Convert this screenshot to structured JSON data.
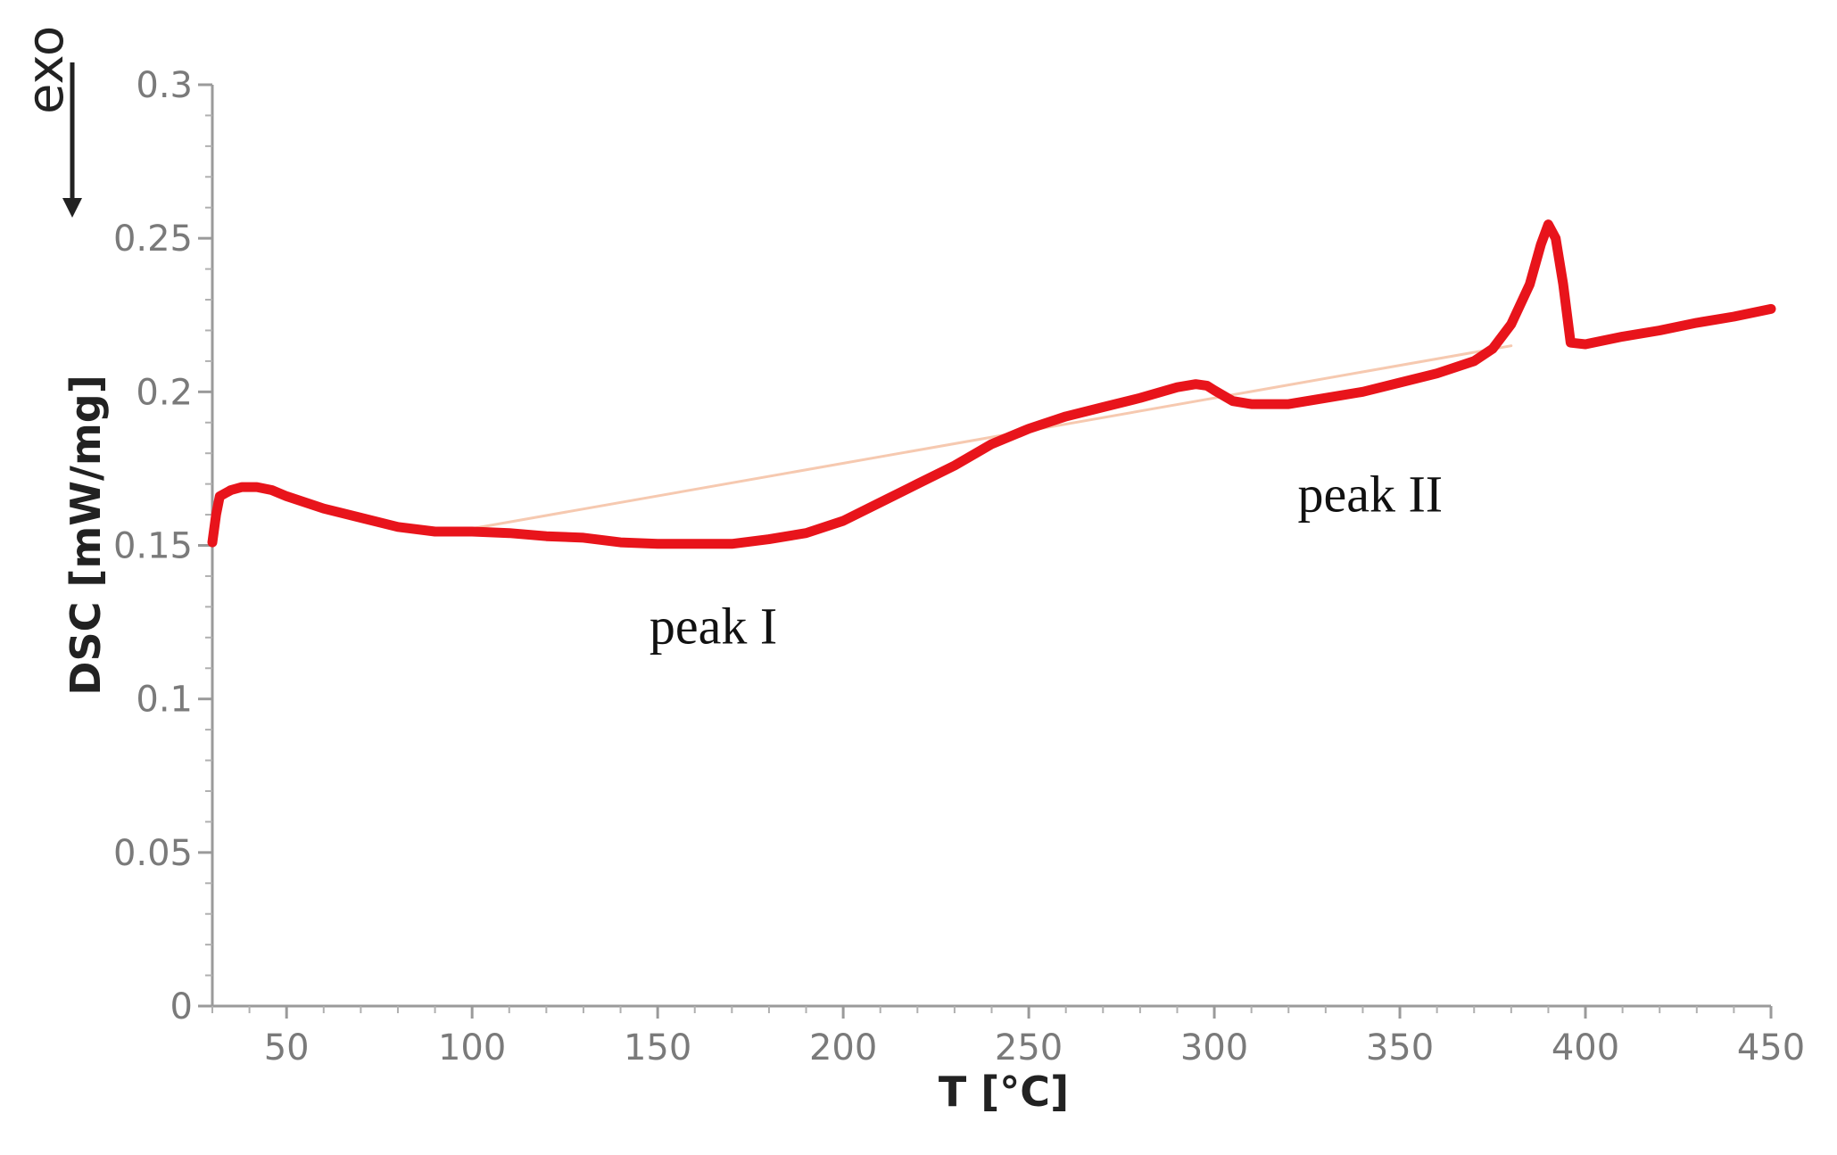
{
  "chart_data": {
    "type": "line",
    "xlabel": "T [°C]",
    "ylabel": "DSC [mW/mg]",
    "xlim": [
      30,
      450
    ],
    "ylim": [
      0,
      0.3
    ],
    "x_ticks": [
      50,
      100,
      150,
      200,
      250,
      300,
      350,
      400,
      450
    ],
    "x_tick_labels": [
      "50",
      "100",
      "150",
      "200",
      "250",
      "300",
      "350",
      "400",
      "450"
    ],
    "y_ticks": [
      0,
      0.05,
      0.1,
      0.15,
      0.2,
      0.25,
      0.3
    ],
    "y_tick_labels": [
      "0",
      "0.05",
      "0.1",
      "0.15",
      "0.2",
      "0.25",
      "0.3"
    ],
    "grid": false,
    "exo_label": "exo",
    "exo_direction": "down",
    "series": [
      {
        "color": "#e8141b",
        "style": "thick",
        "x": [
          30,
          31,
          32,
          35,
          38,
          42,
          46,
          50,
          60,
          70,
          80,
          90,
          100,
          110,
          120,
          130,
          140,
          150,
          160,
          170,
          180,
          190,
          200,
          210,
          220,
          230,
          240,
          250,
          260,
          270,
          280,
          290,
          295,
          298,
          300,
          305,
          310,
          320,
          330,
          340,
          350,
          360,
          370,
          375,
          380,
          385,
          388,
          390,
          392,
          394,
          396,
          400,
          410,
          420,
          430,
          440,
          450
        ],
        "y": [
          0.151,
          0.16,
          0.166,
          0.168,
          0.169,
          0.169,
          0.168,
          0.166,
          0.162,
          0.159,
          0.156,
          0.1545,
          0.1545,
          0.154,
          0.153,
          0.1525,
          0.151,
          0.1505,
          0.1505,
          0.1505,
          0.152,
          0.154,
          0.158,
          0.164,
          0.17,
          0.176,
          0.183,
          0.188,
          0.192,
          0.195,
          0.198,
          0.2015,
          0.2025,
          0.202,
          0.2005,
          0.197,
          0.196,
          0.196,
          0.198,
          0.2,
          0.203,
          0.206,
          0.21,
          0.214,
          0.222,
          0.235,
          0.248,
          0.2545,
          0.25,
          0.235,
          0.216,
          0.2155,
          0.218,
          0.22,
          0.2225,
          0.2245,
          0.227
        ]
      },
      {
        "color": "#f6c9b0",
        "style": "thin",
        "x": [
          100,
          380
        ],
        "y": [
          0.1555,
          0.215
        ]
      }
    ],
    "annotations": [
      {
        "text": "peak I",
        "x": 165,
        "y": 0.118
      },
      {
        "text": "peak II",
        "x": 342,
        "y": 0.161
      }
    ]
  }
}
